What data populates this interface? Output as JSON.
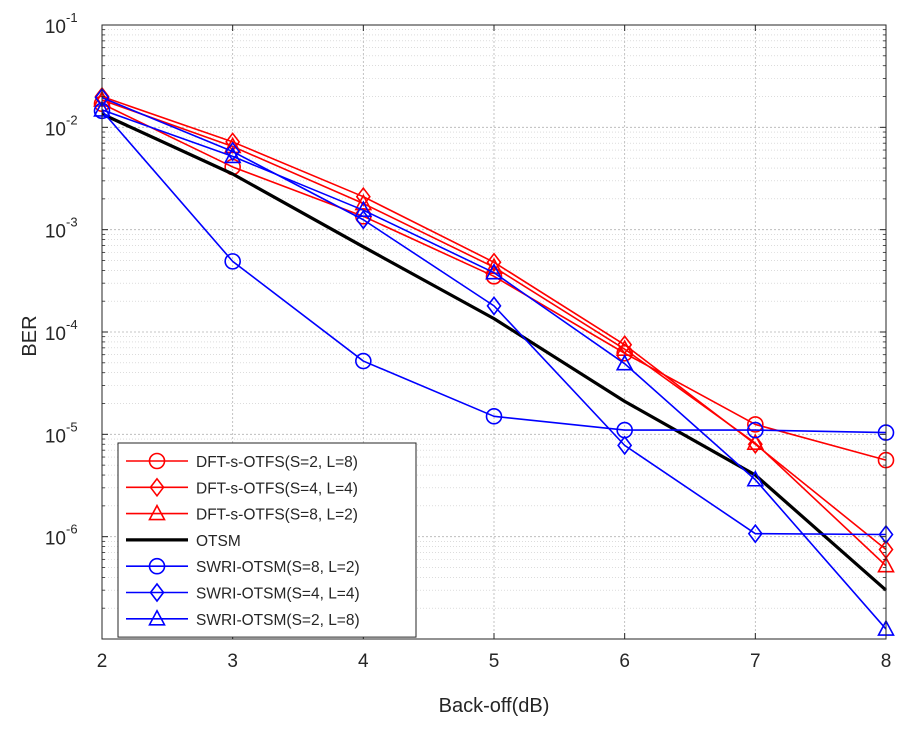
{
  "chart_data": {
    "type": "line",
    "xlabel": "Back-off(dB)",
    "ylabel": "BER",
    "xlim": [
      2,
      8
    ],
    "ylim": [
      1e-07,
      0.1
    ],
    "yscale": "log",
    "grid": true,
    "x": [
      2,
      3,
      4,
      5,
      6,
      7,
      8
    ],
    "x_tick_labels": [
      "2",
      "3",
      "4",
      "5",
      "6",
      "7",
      "8"
    ],
    "y_ticks": [
      {
        "value": 0.1,
        "base": "10",
        "exp": "-1"
      },
      {
        "value": 0.01,
        "base": "10",
        "exp": "-2"
      },
      {
        "value": 0.001,
        "base": "10",
        "exp": "-3"
      },
      {
        "value": 0.0001,
        "base": "10",
        "exp": "-4"
      },
      {
        "value": 1e-05,
        "base": "10",
        "exp": "-5"
      },
      {
        "value": 1e-06,
        "base": "10",
        "exp": "-6"
      }
    ],
    "legend_position": "bottom-left",
    "series": [
      {
        "name": "DFT-s-OTFS(S=2, L=8)",
        "color": "#ff0000",
        "marker": "circle",
        "values": [
          0.017,
          0.0041,
          0.00135,
          0.00035,
          6.2e-05,
          1.25e-05,
          5.6e-06
        ]
      },
      {
        "name": "DFT-s-OTFS(S=4, L=4)",
        "color": "#ff0000",
        "marker": "diamond",
        "values": [
          0.02,
          0.0072,
          0.0021,
          0.00048,
          7.5e-05,
          8e-06,
          7.5e-07
        ]
      },
      {
        "name": "DFT-s-OTFS(S=8, L=2)",
        "color": "#ff0000",
        "marker": "triangle",
        "values": [
          0.0185,
          0.0065,
          0.0018,
          0.00043,
          6.8e-05,
          8.2e-06,
          5.2e-07
        ]
      },
      {
        "name": "OTSM",
        "color": "#000000",
        "marker": "none",
        "values": [
          0.0135,
          0.0035,
          0.00068,
          0.000135,
          2.1e-05,
          4e-06,
          3e-07
        ]
      },
      {
        "name": "SWRI-OTSM(S=8, L=2)",
        "color": "#0000ff",
        "marker": "circle",
        "values": [
          0.0145,
          0.00049,
          5.2e-05,
          1.5e-05,
          1.1e-05,
          1.1e-05,
          1.04e-05
        ]
      },
      {
        "name": "SWRI-OTSM(S=4, L=4)",
        "color": "#0000ff",
        "marker": "diamond",
        "values": [
          0.0195,
          0.0058,
          0.00125,
          0.00018,
          7.8e-06,
          1.07e-06,
          1.05e-06
        ]
      },
      {
        "name": "SWRI-OTSM(S=2, L=8)",
        "color": "#0000ff",
        "marker": "triangle",
        "values": [
          0.0148,
          0.0052,
          0.00155,
          0.00038,
          4.9e-05,
          3.6e-06,
          1.25e-07
        ]
      }
    ]
  }
}
